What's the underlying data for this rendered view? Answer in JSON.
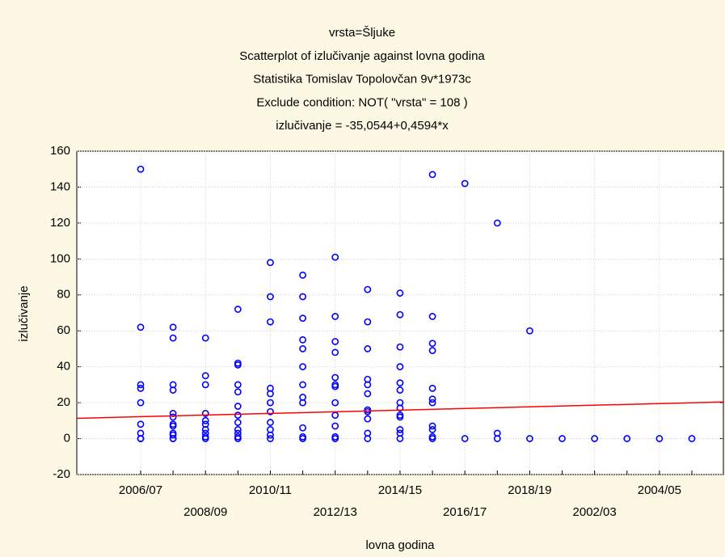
{
  "chart_data": {
    "type": "scatter",
    "title_lines": [
      "vrsta=Šljuke",
      "Scatterplot of izlučivanje against lovna godina",
      "Statistika Tomislav Topolovčan 9v*1973c",
      "Exclude condition: NOT( \"vrsta\" = 108 )",
      "izlučivanje = -35,0544+0,4594*x"
    ],
    "xlabel": "lovna godina",
    "ylabel": "izlučivanje",
    "categories": [
      "2006/07",
      null,
      "2008/09",
      null,
      "2010/11",
      null,
      "2012/13",
      null,
      "2014/15",
      null,
      "2016/17",
      null,
      "2018/19",
      null,
      "2002/03",
      null,
      "2004/05",
      null
    ],
    "values": [
      [
        150,
        62,
        30,
        28,
        20,
        8,
        3,
        0,
        0
      ],
      [
        62,
        56,
        30,
        27,
        14,
        12,
        8,
        7,
        3,
        2,
        0,
        0
      ],
      [
        56,
        35,
        30,
        14,
        10,
        8,
        5,
        3,
        1,
        0
      ],
      [
        72,
        42,
        41,
        30,
        26,
        18,
        13,
        9,
        5,
        3,
        1,
        0
      ],
      [
        98,
        79,
        65,
        28,
        25,
        20,
        15,
        9,
        5,
        2,
        0
      ],
      [
        91,
        79,
        67,
        55,
        50,
        40,
        30,
        23,
        20,
        6,
        1,
        0
      ],
      [
        101,
        68,
        54,
        48,
        34,
        30,
        29,
        20,
        13,
        7,
        1,
        0
      ],
      [
        83,
        65,
        50,
        33,
        30,
        25,
        16,
        15,
        11,
        3,
        0
      ],
      [
        81,
        69,
        51,
        40,
        31,
        27,
        20,
        17,
        13,
        12,
        5,
        3,
        0
      ],
      [
        147,
        68,
        53,
        49,
        28,
        22,
        20,
        7,
        5,
        1,
        0
      ],
      [
        142,
        0
      ],
      [
        120,
        3,
        0
      ],
      [
        60,
        0
      ],
      [
        0
      ],
      [
        0
      ],
      [
        0
      ],
      [
        0
      ],
      [
        0
      ]
    ],
    "color": "#0000ff",
    "trend": {
      "color": "#ff0000",
      "values": [
        11.3,
        20.4
      ]
    },
    "ylim": [
      -20,
      160
    ],
    "yticks": [
      -20,
      0,
      20,
      40,
      60,
      80,
      100,
      120,
      140,
      160
    ],
    "grid": true
  }
}
